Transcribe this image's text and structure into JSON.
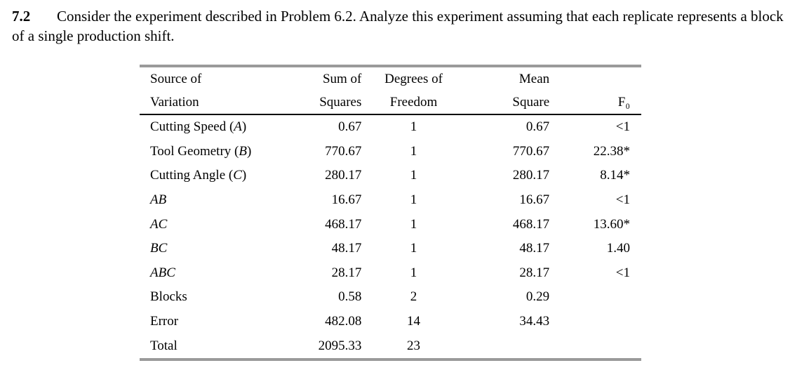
{
  "problem": {
    "number": "7.2",
    "text": "Consider the experiment described in Problem 6.2.   Analyze this experiment assuming that each replicate represents a block of a single production shift."
  },
  "table": {
    "header_row_1": [
      "Source of",
      "Sum of",
      "Degrees of",
      "Mean",
      ""
    ],
    "header_row_2": [
      "Variation",
      "Squares",
      "Freedom",
      "Square",
      "F₀"
    ],
    "rows": [
      {
        "source": "Cutting Speed (A)",
        "ss": "0.67",
        "df": "1",
        "ms": "0.67",
        "f": "<1"
      },
      {
        "source": "Tool Geometry (B)",
        "ss": "770.67",
        "df": "1",
        "ms": "770.67",
        "f": "22.38*"
      },
      {
        "source": "Cutting Angle (C)",
        "ss": "280.17",
        "df": "1",
        "ms": "280.17",
        "f": "8.14*"
      },
      {
        "source": "AB",
        "ss": "16.67",
        "df": "1",
        "ms": "16.67",
        "f": "<1"
      },
      {
        "source": "AC",
        "ss": "468.17",
        "df": "1",
        "ms": "468.17",
        "f": "13.60*"
      },
      {
        "source": "BC",
        "ss": "48.17",
        "df": "1",
        "ms": "48.17",
        "f": "1.40"
      },
      {
        "source": "ABC",
        "ss": "28.17",
        "df": "1",
        "ms": "28.17",
        "f": "<1"
      },
      {
        "source": "Blocks",
        "ss": "0.58",
        "df": "2",
        "ms": "0.29",
        "f": ""
      },
      {
        "source": "Error",
        "ss": "482.08",
        "df": "14",
        "ms": "34.43",
        "f": ""
      },
      {
        "source": "Total",
        "ss": "2095.33",
        "df": "23",
        "ms": "",
        "f": ""
      }
    ]
  }
}
